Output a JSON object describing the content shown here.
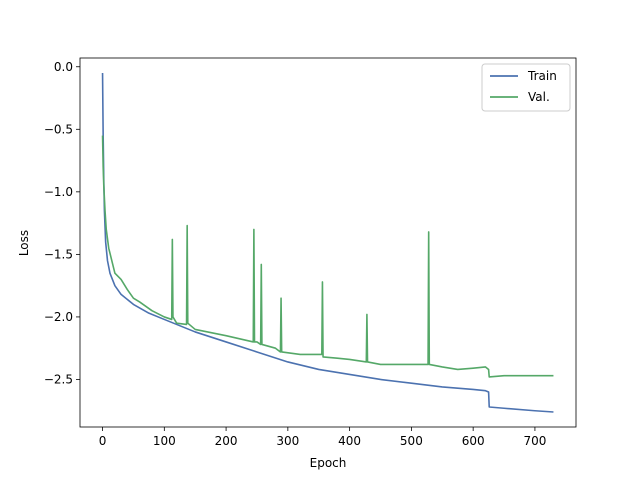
{
  "chart_data": {
    "type": "line",
    "title": "",
    "xlabel": "Epoch",
    "ylabel": "Loss",
    "xlim": [
      -36.5,
      766.5
    ],
    "ylim": [
      -2.88,
      0.07
    ],
    "xticks": [
      0,
      100,
      200,
      300,
      400,
      500,
      600,
      700
    ],
    "yticks": [
      0.0,
      -0.5,
      -1.0,
      -1.5,
      -2.0,
      -2.5
    ],
    "ytick_labels": [
      "0.0",
      "−0.5",
      "−1.0",
      "−1.5",
      "−2.0",
      "−2.5"
    ],
    "grid": false,
    "legend_position": "top-right",
    "series": [
      {
        "name": "Train",
        "color": "#4c72b0",
        "x": [
          0,
          1,
          2,
          3,
          5,
          8,
          12,
          20,
          30,
          50,
          75,
          100,
          150,
          200,
          250,
          300,
          350,
          400,
          450,
          500,
          550,
          600,
          620,
          625,
          626,
          650,
          700,
          730
        ],
        "y": [
          -0.05,
          -0.55,
          -0.9,
          -1.15,
          -1.4,
          -1.55,
          -1.65,
          -1.75,
          -1.82,
          -1.9,
          -1.97,
          -2.02,
          -2.12,
          -2.2,
          -2.28,
          -2.36,
          -2.42,
          -2.46,
          -2.5,
          -2.53,
          -2.56,
          -2.58,
          -2.59,
          -2.6,
          -2.72,
          -2.73,
          -2.75,
          -2.76
        ]
      },
      {
        "name": "Val.",
        "color": "#55a868",
        "x": [
          0,
          1,
          2,
          4,
          6,
          10,
          15,
          20,
          30,
          40,
          50,
          60,
          80,
          100,
          112,
          113,
          114,
          120,
          136,
          137,
          138,
          150,
          200,
          244,
          245,
          246,
          250,
          256,
          257,
          258,
          280,
          288,
          289,
          290,
          320,
          355,
          356,
          357,
          380,
          400,
          427,
          428,
          429,
          450,
          500,
          527,
          528,
          529,
          550,
          575,
          600,
          620,
          625,
          626,
          650,
          700,
          730
        ],
        "y": [
          -0.55,
          -0.8,
          -0.95,
          -1.15,
          -1.3,
          -1.45,
          -1.55,
          -1.65,
          -1.7,
          -1.78,
          -1.85,
          -1.88,
          -1.95,
          -2.0,
          -2.02,
          -1.38,
          -2.0,
          -2.05,
          -2.06,
          -1.27,
          -2.05,
          -2.1,
          -2.15,
          -2.2,
          -1.3,
          -2.2,
          -2.2,
          -2.22,
          -1.58,
          -2.22,
          -2.25,
          -2.28,
          -1.85,
          -2.28,
          -2.3,
          -2.3,
          -1.72,
          -2.32,
          -2.33,
          -2.34,
          -2.36,
          -1.98,
          -2.36,
          -2.38,
          -2.38,
          -2.38,
          -1.32,
          -2.38,
          -2.4,
          -2.42,
          -2.41,
          -2.4,
          -2.42,
          -2.48,
          -2.47,
          -2.47,
          -2.47
        ]
      }
    ]
  }
}
